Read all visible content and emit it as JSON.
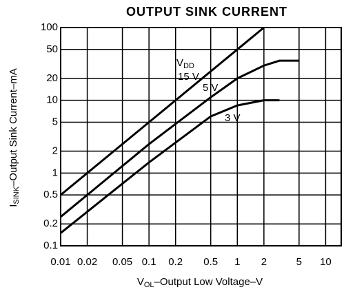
{
  "chart_data": {
    "type": "line",
    "title": "OUTPUT SINK CURRENT",
    "x_label": {
      "main": "V",
      "sub": "OL",
      "rest": "–Output Low Voltage–V"
    },
    "y_label": {
      "main": "I",
      "sub": "SINK",
      "rest": "–Output Sink Current–mA"
    },
    "annotation": {
      "main": "V",
      "sub": "DD"
    },
    "log_x": true,
    "log_y": true,
    "grid": true,
    "color": "#000000",
    "xlim": [
      0.01,
      15
    ],
    "ylim": [
      0.1,
      100
    ],
    "xticks": [
      0.01,
      0.02,
      0.05,
      0.1,
      0.2,
      0.5,
      1,
      2,
      5,
      10
    ],
    "yticks": [
      0.1,
      0.2,
      0.5,
      1,
      2,
      5,
      10,
      20,
      50,
      100
    ],
    "series": [
      {
        "name": "15 V",
        "x": [
          0.01,
          0.1,
          1,
          2
        ],
        "values": [
          0.5,
          5,
          50,
          100
        ]
      },
      {
        "name": "5 V",
        "x": [
          0.01,
          0.1,
          0.5,
          1,
          2,
          3,
          5
        ],
        "values": [
          0.25,
          2.5,
          11,
          20,
          30,
          35,
          35
        ]
      },
      {
        "name": "3 V",
        "x": [
          0.01,
          0.1,
          0.5,
          1,
          2,
          3
        ],
        "values": [
          0.15,
          1.4,
          6,
          8.5,
          10,
          10
        ]
      }
    ]
  }
}
